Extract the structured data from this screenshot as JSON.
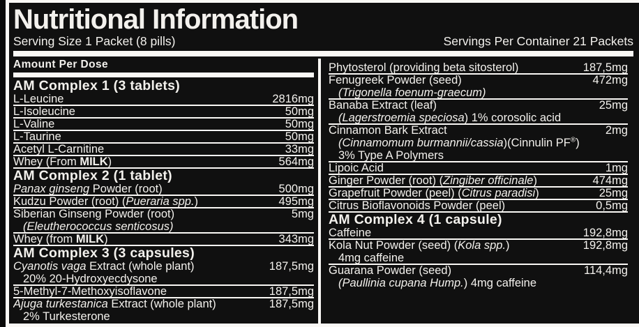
{
  "header": {
    "title": "Nutritional Information",
    "serving_size": "Serving Size 1 Packet (8 pills)",
    "servings_per_container": "Servings Per Container 21 Packets",
    "amount_per_dose_label": "Amount Per Dose"
  },
  "colors": {
    "background": "#101010",
    "text": "#f3f1ed",
    "rule": "#faf8f5"
  },
  "columns": {
    "left": [
      {
        "type": "header",
        "text": "AM Complex 1 (3 tablets)"
      },
      {
        "type": "row",
        "parts": [
          {
            "t": "L-Leucine"
          }
        ],
        "amount": "2816mg",
        "rule": true
      },
      {
        "type": "row",
        "parts": [
          {
            "t": "L-Isoleucine"
          }
        ],
        "amount": "50mg",
        "rule": true
      },
      {
        "type": "row",
        "parts": [
          {
            "t": "L-Valine"
          }
        ],
        "amount": "50mg",
        "rule": true
      },
      {
        "type": "row",
        "parts": [
          {
            "t": "L-Taurine"
          }
        ],
        "amount": "50mg",
        "rule": true
      },
      {
        "type": "row",
        "parts": [
          {
            "t": "Acetyl L-Carnitine"
          }
        ],
        "amount": "33mg",
        "rule": true
      },
      {
        "type": "row",
        "parts": [
          {
            "t": "Whey (From "
          },
          {
            "t": "MILK",
            "b": true
          },
          {
            "t": ")"
          }
        ],
        "amount": "564mg",
        "rule": true
      },
      {
        "type": "header",
        "text": "AM Complex 2 (1 tablet)"
      },
      {
        "type": "row",
        "parts": [
          {
            "t": "Panax ginseng",
            "i": true
          },
          {
            "t": " Powder (root)"
          }
        ],
        "amount": "500mg",
        "rule": true
      },
      {
        "type": "row",
        "parts": [
          {
            "t": "Kudzu Powder (root) ("
          },
          {
            "t": "Pueraria spp.",
            "i": true
          },
          {
            "t": ")"
          }
        ],
        "amount": "495mg",
        "rule": true
      },
      {
        "type": "row",
        "parts": [
          {
            "t": "Siberian Ginseng Powder (root)"
          }
        ],
        "amount": "5mg",
        "rule": false
      },
      {
        "type": "row",
        "parts": [
          {
            "t": "(Eleutherococcus senticosus)",
            "i": true
          }
        ],
        "indent": true,
        "rule": true
      },
      {
        "type": "row",
        "parts": [
          {
            "t": "Whey (from "
          },
          {
            "t": "MILK",
            "b": true
          },
          {
            "t": ")"
          }
        ],
        "amount": "343mg",
        "rule": true
      },
      {
        "type": "header",
        "text": "AM Complex 3 (3 capsules)"
      },
      {
        "type": "row",
        "parts": [
          {
            "t": "Cyanotis vaga",
            "i": true
          },
          {
            "t": " Extract (whole plant)"
          }
        ],
        "amount": "187,5mg",
        "rule": false
      },
      {
        "type": "row",
        "parts": [
          {
            "t": "20% 20-Hydroxyecdysone"
          }
        ],
        "indent": true,
        "rule": true
      },
      {
        "type": "row",
        "parts": [
          {
            "t": "5-Methyl-7-Methoxyisoflavone"
          }
        ],
        "amount": "187,5mg",
        "rule": true
      },
      {
        "type": "row",
        "parts": [
          {
            "t": "Ajuga turkestanica",
            "i": true
          },
          {
            "t": " Extract (whole plant)"
          }
        ],
        "amount": "187,5mg",
        "rule": false
      },
      {
        "type": "row",
        "parts": [
          {
            "t": "2% Turkesterone"
          }
        ],
        "indent": true,
        "rule": false
      }
    ],
    "right": [
      {
        "type": "row",
        "parts": [
          {
            "t": "Phytosterol (providing beta sitosterol)"
          }
        ],
        "amount": "187,5mg",
        "rule": true
      },
      {
        "type": "row",
        "parts": [
          {
            "t": "Fenugreek Powder (seed)"
          }
        ],
        "amount": "472mg",
        "rule": false
      },
      {
        "type": "row",
        "parts": [
          {
            "t": "(Trigonella foenum-graecum)",
            "i": true
          }
        ],
        "indent": true,
        "rule": true
      },
      {
        "type": "row",
        "parts": [
          {
            "t": "Banaba Extract (leaf)"
          }
        ],
        "amount": "25mg",
        "rule": false
      },
      {
        "type": "row",
        "parts": [
          {
            "t": "(Lagerstroemia speciosa",
            "i": true
          },
          {
            "t": ") 1% corosolic acid"
          }
        ],
        "indent": true,
        "rule": true
      },
      {
        "type": "row",
        "parts": [
          {
            "t": "Cinnamon Bark Extract"
          }
        ],
        "amount": "2mg",
        "rule": false
      },
      {
        "type": "row",
        "parts": [
          {
            "t": "(Cinnamomum burmannii/cassia",
            "i": true
          },
          {
            "t": ")(Cinnulin PF"
          },
          {
            "t": "®",
            "sup": true
          },
          {
            "t": ")"
          }
        ],
        "indent": true,
        "rule": false
      },
      {
        "type": "row",
        "parts": [
          {
            "t": "3% Type A Polymers"
          }
        ],
        "indent": true,
        "rule": true
      },
      {
        "type": "row",
        "parts": [
          {
            "t": "Lipoic Acid"
          }
        ],
        "amount": "1mg",
        "rule": true
      },
      {
        "type": "row",
        "parts": [
          {
            "t": "Ginger Powder (root) ("
          },
          {
            "t": "Zingiber officinale",
            "i": true
          },
          {
            "t": ")"
          }
        ],
        "amount": "474mg",
        "rule": true
      },
      {
        "type": "row",
        "parts": [
          {
            "t": "Grapefruit Powder (peel) ("
          },
          {
            "t": "Citrus paradisi",
            "i": true
          },
          {
            "t": ")"
          }
        ],
        "amount": "25mg",
        "rule": true
      },
      {
        "type": "row",
        "parts": [
          {
            "t": "Citrus Bioflavonoids Powder (peel)"
          }
        ],
        "amount": "0,5mg",
        "rule": true
      },
      {
        "type": "header",
        "text": "AM Complex 4 (1 capsule)"
      },
      {
        "type": "row",
        "parts": [
          {
            "t": "Caffeine"
          }
        ],
        "amount": "192,8mg",
        "rule": true
      },
      {
        "type": "row",
        "parts": [
          {
            "t": "Kola Nut Powder (seed) ("
          },
          {
            "t": "Kola spp.",
            "i": true
          },
          {
            "t": ")"
          }
        ],
        "amount": "192,8mg",
        "rule": false
      },
      {
        "type": "row",
        "parts": [
          {
            "t": "4mg caffeine"
          }
        ],
        "indent": true,
        "rule": true
      },
      {
        "type": "row",
        "parts": [
          {
            "t": "Guarana Powder (seed)"
          }
        ],
        "amount": "114,4mg",
        "rule": false
      },
      {
        "type": "row",
        "parts": [
          {
            "t": "(Paullinia cupana Hump.",
            "i": true
          },
          {
            "t": ") 4mg caffeine"
          }
        ],
        "indent": true,
        "rule": false
      }
    ]
  }
}
